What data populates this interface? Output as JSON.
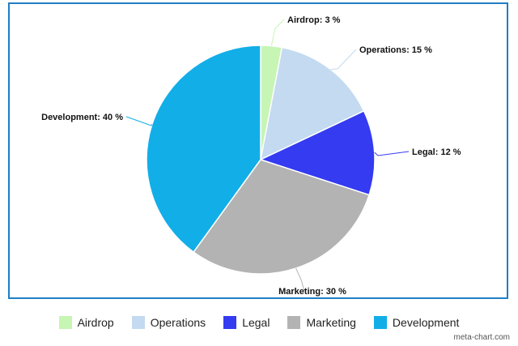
{
  "chart_data": {
    "type": "pie",
    "slices": [
      {
        "name": "Airdrop",
        "value": 3,
        "label": "Airdrop: 3 %",
        "color": "#c6f5b4"
      },
      {
        "name": "Operations",
        "value": 15,
        "label": "Operations: 15 %",
        "color": "#c3daf0"
      },
      {
        "name": "Legal",
        "value": 12,
        "label": "Legal: 12 %",
        "color": "#343bf0"
      },
      {
        "name": "Marketing",
        "value": 30,
        "label": "Marketing: 30 %",
        "color": "#b3b3b3"
      },
      {
        "name": "Development",
        "value": 40,
        "label": "Development: 40 %",
        "color": "#12aee8"
      }
    ],
    "legend_position": "bottom",
    "frame_color": "#1f7fc4"
  },
  "legend": {
    "items": [
      {
        "label": "Airdrop",
        "color": "#c6f5b4"
      },
      {
        "label": "Operations",
        "color": "#c3daf0"
      },
      {
        "label": "Legal",
        "color": "#343bf0"
      },
      {
        "label": "Marketing",
        "color": "#b3b3b3"
      },
      {
        "label": "Development",
        "color": "#12aee8"
      }
    ]
  },
  "credit": {
    "text": "meta-chart.com"
  }
}
